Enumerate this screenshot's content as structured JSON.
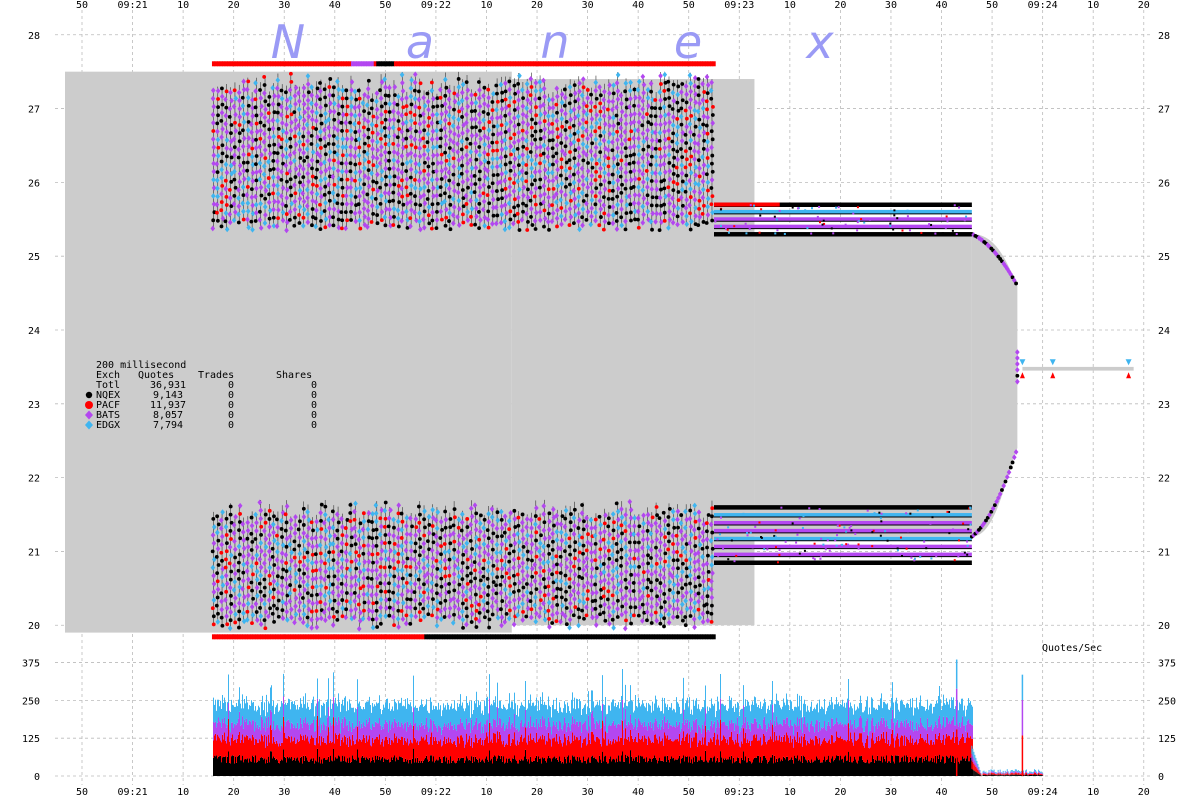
{
  "watermark": [
    "N",
    "a",
    "n",
    "e",
    "x"
  ],
  "colors": {
    "NQEX": "#000000",
    "PACF": "#ff0000",
    "BATS": "#b347f0",
    "EDGX": "#3fb5f0",
    "spread": "#cccccc",
    "grid": "#bbbbbb"
  },
  "chart_data": [
    {
      "type": "scatter",
      "title": "",
      "xlabel": "",
      "ylabel": "",
      "x_tick_labels": [
        "50",
        "09:21",
        "10",
        "20",
        "30",
        "40",
        "50",
        "09:22",
        "10",
        "20",
        "30",
        "40",
        "50",
        "09:23",
        "10",
        "20",
        "30",
        "40",
        "50",
        "09:24",
        "10",
        "20"
      ],
      "x_range": [
        "09:20:50",
        "09:24:20"
      ],
      "ylim": [
        19.8,
        28.2
      ],
      "y_ticks": [
        20,
        21,
        22,
        23,
        24,
        25,
        26,
        27,
        28
      ],
      "grid": true,
      "legend": {
        "placement": "left-middle",
        "interval": "200 millisecond",
        "headers": [
          "Exch",
          "Quotes",
          "Trades",
          "Shares"
        ],
        "rows": [
          {
            "exch": "Totl",
            "quotes": "36,931",
            "trades": "0",
            "shares": "0"
          },
          {
            "exch": "NQEX",
            "quotes": "9,143",
            "trades": "0",
            "shares": "0",
            "marker": "circle"
          },
          {
            "exch": "PACF",
            "quotes": "11,937",
            "trades": "0",
            "shares": "0",
            "marker": "circle"
          },
          {
            "exch": "BATS",
            "quotes": "8,057",
            "trades": "0",
            "shares": "0",
            "marker": "diamond"
          },
          {
            "exch": "EDGX",
            "quotes": "7,794",
            "trades": "0",
            "shares": "0",
            "marker": "diamond"
          }
        ]
      },
      "spread_segments": [
        {
          "t0": 0,
          "t1": 85,
          "bid": 19.9,
          "ask": 27.5
        },
        {
          "t0": 85,
          "t1": 133,
          "bid": 20.0,
          "ask": 27.4
        },
        {
          "t0": 133,
          "t1": 176,
          "bid": 21.2,
          "ask": 25.3
        },
        {
          "t0": 176,
          "t1": 185,
          "bid_end": 22.4,
          "ask_end": 24.6
        },
        {
          "t0": 186,
          "t1": 208,
          "bid": 23.45,
          "ask": 23.5
        }
      ],
      "bid_band": {
        "t0": 26,
        "t1": 125,
        "low": 19.95,
        "high": 21.7,
        "bid_floor": 19.85
      },
      "ask_band": {
        "t0": 26,
        "t1": 125,
        "low": 25.35,
        "high": 27.5,
        "ask_ceiling": 27.6
      },
      "compressed_bid_band": {
        "t0": 125,
        "t1": 176,
        "low": 20.85,
        "high": 21.6
      },
      "compressed_ask_band": {
        "t0": 125,
        "t1": 176,
        "low": 25.3,
        "high": 25.7
      },
      "final_quotes": [
        {
          "t": 186,
          "price": 23.55,
          "exch": "EDGX"
        },
        {
          "t": 192,
          "price": 23.55,
          "exch": "EDGX"
        },
        {
          "t": 207,
          "price": 23.55,
          "exch": "EDGX"
        },
        {
          "t": 186,
          "price": 23.4,
          "exch": "PACF"
        },
        {
          "t": 192,
          "price": 23.4,
          "exch": "PACF"
        },
        {
          "t": 207,
          "price": 23.4,
          "exch": "PACF"
        }
      ]
    },
    {
      "type": "area",
      "title": "Quotes/Sec",
      "ylim": [
        0,
        400
      ],
      "y_ticks": [
        0,
        125,
        250,
        375
      ],
      "series_order": [
        "NQEX",
        "PACF",
        "BATS",
        "EDGX"
      ],
      "typical_stack": [
        55,
        65,
        50,
        65
      ],
      "active_range": [
        26,
        176
      ],
      "peaks": [
        {
          "t": 173,
          "total": 385
        },
        {
          "t": 186,
          "total": 335
        }
      ]
    }
  ]
}
